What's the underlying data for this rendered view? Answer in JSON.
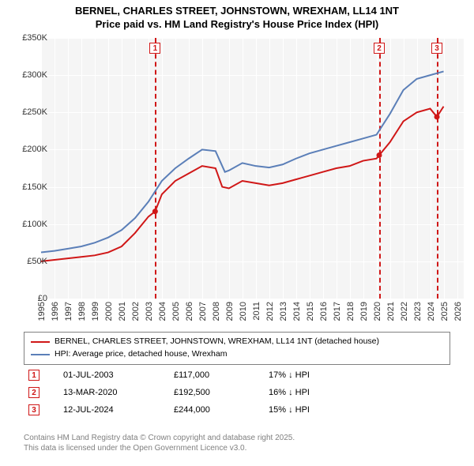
{
  "title_line1": "BERNEL, CHARLES STREET, JOHNSTOWN, WREXHAM, LL14 1NT",
  "title_line2": "Price paid vs. HM Land Registry's House Price Index (HPI)",
  "chart": {
    "type": "line",
    "background_color": "#f5f5f5",
    "grid_color": "#ffffff",
    "x_years": [
      1995,
      1996,
      1997,
      1998,
      1999,
      2000,
      2001,
      2002,
      2003,
      2004,
      2005,
      2006,
      2007,
      2008,
      2009,
      2010,
      2011,
      2012,
      2013,
      2014,
      2015,
      2016,
      2017,
      2018,
      2019,
      2020,
      2021,
      2022,
      2023,
      2024,
      2025,
      2026
    ],
    "xlim": [
      1995,
      2026.5
    ],
    "ylim": [
      0,
      350000
    ],
    "ytick_step": 50000,
    "yticks": [
      "£0",
      "£50K",
      "£100K",
      "£150K",
      "£200K",
      "£250K",
      "£300K",
      "£350K"
    ],
    "series": [
      {
        "name": "price_paid",
        "color": "#d01717",
        "width": 2,
        "data": [
          [
            1995,
            50000
          ],
          [
            1996,
            52000
          ],
          [
            1997,
            54000
          ],
          [
            1998,
            56000
          ],
          [
            1999,
            58000
          ],
          [
            2000,
            62000
          ],
          [
            2001,
            70000
          ],
          [
            2002,
            88000
          ],
          [
            2003,
            110000
          ],
          [
            2003.5,
            117000
          ],
          [
            2004,
            140000
          ],
          [
            2005,
            158000
          ],
          [
            2006,
            168000
          ],
          [
            2007,
            178000
          ],
          [
            2008,
            175000
          ],
          [
            2008.5,
            150000
          ],
          [
            2009,
            148000
          ],
          [
            2010,
            158000
          ],
          [
            2011,
            155000
          ],
          [
            2012,
            152000
          ],
          [
            2013,
            155000
          ],
          [
            2014,
            160000
          ],
          [
            2015,
            165000
          ],
          [
            2016,
            170000
          ],
          [
            2017,
            175000
          ],
          [
            2018,
            178000
          ],
          [
            2019,
            185000
          ],
          [
            2020,
            188000
          ],
          [
            2020.2,
            192500
          ],
          [
            2021,
            210000
          ],
          [
            2022,
            238000
          ],
          [
            2023,
            250000
          ],
          [
            2024,
            255000
          ],
          [
            2024.5,
            244000
          ],
          [
            2025,
            258000
          ]
        ],
        "markers": [
          [
            2003.5,
            117000
          ],
          [
            2020.2,
            192500
          ],
          [
            2024.5,
            244000
          ]
        ]
      },
      {
        "name": "hpi",
        "color": "#5b7fb8",
        "width": 2,
        "data": [
          [
            1995,
            62000
          ],
          [
            1996,
            64000
          ],
          [
            1997,
            67000
          ],
          [
            1998,
            70000
          ],
          [
            1999,
            75000
          ],
          [
            2000,
            82000
          ],
          [
            2001,
            92000
          ],
          [
            2002,
            108000
          ],
          [
            2003,
            130000
          ],
          [
            2004,
            158000
          ],
          [
            2005,
            175000
          ],
          [
            2006,
            188000
          ],
          [
            2007,
            200000
          ],
          [
            2008,
            198000
          ],
          [
            2008.7,
            170000
          ],
          [
            2009,
            172000
          ],
          [
            2010,
            182000
          ],
          [
            2011,
            178000
          ],
          [
            2012,
            176000
          ],
          [
            2013,
            180000
          ],
          [
            2014,
            188000
          ],
          [
            2015,
            195000
          ],
          [
            2016,
            200000
          ],
          [
            2017,
            205000
          ],
          [
            2018,
            210000
          ],
          [
            2019,
            215000
          ],
          [
            2020,
            220000
          ],
          [
            2021,
            248000
          ],
          [
            2022,
            280000
          ],
          [
            2023,
            295000
          ],
          [
            2024,
            300000
          ],
          [
            2025,
            305000
          ]
        ]
      }
    ],
    "events": [
      {
        "num": "1",
        "year": 2003.5
      },
      {
        "num": "2",
        "year": 2020.2
      },
      {
        "num": "3",
        "year": 2024.5
      }
    ]
  },
  "legend": {
    "items": [
      {
        "color": "#d01717",
        "label": "BERNEL, CHARLES STREET, JOHNSTOWN, WREXHAM, LL14 1NT (detached house)"
      },
      {
        "color": "#5b7fb8",
        "label": "HPI: Average price, detached house, Wrexham"
      }
    ]
  },
  "sales": [
    {
      "num": "1",
      "date": "01-JUL-2003",
      "price": "£117,000",
      "pct": "17% ↓ HPI"
    },
    {
      "num": "2",
      "date": "13-MAR-2020",
      "price": "£192,500",
      "pct": "16% ↓ HPI"
    },
    {
      "num": "3",
      "date": "12-JUL-2024",
      "price": "£244,000",
      "pct": "15% ↓ HPI"
    }
  ],
  "footer_line1": "Contains HM Land Registry data © Crown copyright and database right 2025.",
  "footer_line2": "This data is licensed under the Open Government Licence v3.0."
}
